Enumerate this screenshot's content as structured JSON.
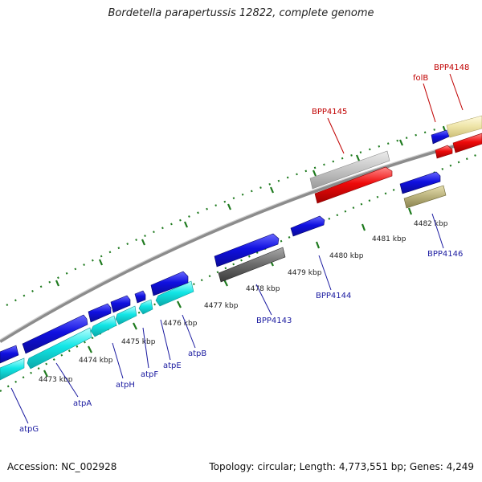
{
  "title": "Bordetella parapertussis 12822, complete genome",
  "footer": {
    "accession": "Accession: NC_002928",
    "summary": "Topology: circular; Length: 4,773,551 bp; Genes: 4,249"
  },
  "colors": {
    "backbone": "#8c8c8c",
    "tick": "#1e7a1e",
    "blue_gene": "#1010e0",
    "cyan_gene": "#12e6e6",
    "red_gene": "#ee0a0a",
    "light_gray_gene": "#c4c4c4",
    "dark_gray_gene": "#6a6a6a",
    "olive_gene": "#b8b07a",
    "cream_gene": "#eee4a8",
    "label_blue": "#1a1aa0",
    "label_red": "#c00000"
  },
  "scale_labels": [
    "4473 kbp",
    "4474 kbp",
    "4475 kbp",
    "4476 kbp",
    "4477 kbp",
    "4478 kbp",
    "4479 kbp",
    "4480 kbp",
    "4481 kbp",
    "4482 kbp"
  ],
  "gene_labels": {
    "atpG": "atpG",
    "atpA": "atpA",
    "atpH": "atpH",
    "atpF": "atpF",
    "atpE": "atpE",
    "atpB": "atpB",
    "BPP4143": "BPP4143",
    "BPP4144": "BPP4144",
    "BPP4145": "BPP4145",
    "BPP4146": "BPP4146",
    "folB": "folB",
    "BPP4148": "BPP4148"
  }
}
